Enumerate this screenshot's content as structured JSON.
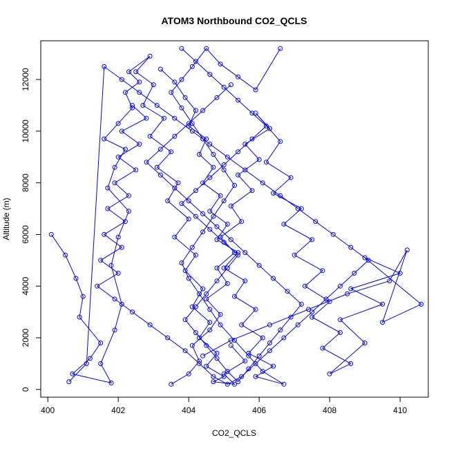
{
  "chart_data": {
    "type": "line",
    "title": "ATOM3 Northbound CO2_QCLS",
    "xlabel": "CO2_QCLS",
    "ylabel": "Altitude (m)",
    "xlim": [
      399.8,
      410.8
    ],
    "ylim": [
      -300,
      13500
    ],
    "x_ticks": [
      400,
      402,
      404,
      406,
      408,
      410
    ],
    "y_ticks": [
      0,
      2000,
      4000,
      6000,
      8000,
      10000,
      12000
    ],
    "marker": "open-circle",
    "grid": false,
    "series_color": "#0000ff",
    "series": [
      {
        "x": [
          400.1,
          400.5,
          400.8,
          401.0,
          400.9,
          401.5,
          401.2,
          400.7,
          401.8,
          401.5,
          401.9,
          402.1,
          401.8,
          402.0,
          402.3,
          401.7,
          401.9,
          402.2,
          401.6,
          402.0,
          402.4,
          402.2,
          402.6,
          402.3,
          402.9,
          402.5,
          403.0,
          402.7,
          403.3,
          402.9,
          403.5,
          403.1,
          403.7,
          403.4,
          404.0,
          403.6,
          404.2,
          403.9,
          404.4,
          404.1,
          404.6,
          404.3,
          404.8,
          404.5,
          405.0,
          404.7,
          405.3,
          405.0,
          405.6,
          405.2
        ],
        "y": [
          6000,
          5200,
          4300,
          3600,
          2800,
          1800,
          1200,
          600,
          250,
          1000,
          2300,
          3300,
          4800,
          5900,
          6900,
          7800,
          8600,
          9300,
          9700,
          10300,
          10900,
          11500,
          11900,
          12300,
          12900,
          12300,
          11800,
          11000,
          10500,
          9800,
          9200,
          8600,
          8000,
          7300,
          6600,
          5900,
          5200,
          4600,
          3900,
          3200,
          2600,
          2000,
          1400,
          900,
          500,
          300,
          200,
          600,
          1100,
          1700
        ]
      },
      {
        "x": [
          403.5,
          404.0,
          404.3,
          404.1,
          404.6,
          404.9,
          404.5,
          405.1,
          404.8,
          405.3,
          404.9,
          405.5,
          405.2,
          405.8,
          405.4,
          406.0,
          405.6,
          406.3,
          405.9,
          406.6,
          406.2,
          406.9,
          406.4,
          407.2,
          406.7,
          407.5,
          407.0,
          407.8,
          407.3,
          408.0,
          407.5,
          408.3,
          407.8,
          408.6,
          408.0,
          409.0,
          408.3,
          409.5,
          408.6,
          410.0,
          409.0,
          410.6,
          409.5,
          410.2,
          409.7,
          408.5,
          407.4,
          406.3,
          405.2,
          404.4
        ],
        "y": [
          200,
          600,
          1100,
          1700,
          2300,
          2900,
          3500,
          4100,
          4700,
          5300,
          5900,
          6500,
          7100,
          7700,
          8300,
          8900,
          9500,
          10100,
          10700,
          9600,
          8800,
          8200,
          7600,
          7000,
          6400,
          5800,
          5200,
          4600,
          4000,
          3400,
          2800,
          2200,
          1600,
          1000,
          600,
          1800,
          2700,
          3300,
          3900,
          4500,
          5100,
          3300,
          2600,
          5400,
          4200,
          3700,
          3100,
          2500,
          1900,
          1300
        ]
      },
      {
        "x": [
          403.2,
          403.6,
          403.9,
          404.2,
          404.0,
          404.5,
          404.3,
          404.7,
          404.4,
          404.9,
          404.6,
          405.1,
          404.8,
          405.4,
          405.0,
          405.6,
          405.3,
          405.9,
          405.5,
          406.1,
          405.7,
          406.4,
          405.9,
          406.7,
          406.1,
          405.7,
          405.3,
          404.9,
          404.6,
          404.3,
          404.0,
          403.8,
          404.1,
          404.4,
          404.7,
          405.0,
          405.3,
          405.0,
          404.7,
          404.4,
          404.1,
          403.8,
          403.5,
          403.8,
          404.1,
          404.5,
          404.9,
          405.4,
          405.9,
          406.6
        ],
        "y": [
          12400,
          11900,
          11300,
          10800,
          10200,
          9700,
          9100,
          8600,
          8000,
          7500,
          6900,
          6400,
          5800,
          5300,
          4700,
          4200,
          3600,
          3100,
          2500,
          2000,
          1400,
          900,
          500,
          200,
          700,
          1300,
          1900,
          2500,
          3100,
          3700,
          4300,
          4900,
          5500,
          6100,
          6700,
          7300,
          7900,
          8500,
          9100,
          9700,
          10300,
          10900,
          11500,
          12000,
          12500,
          13200,
          12600,
          12100,
          11600,
          13200
        ]
      },
      {
        "x": [
          402.4,
          402.8,
          402.1,
          402.6,
          402.0,
          402.5,
          401.9,
          402.3,
          401.7,
          402.2,
          401.6,
          402.1,
          401.5,
          402.0,
          401.4,
          401.9,
          402.4,
          402.9,
          403.4,
          403.9,
          404.3,
          404.7,
          405.1,
          405.5,
          405.9,
          406.3,
          406.7,
          407.1,
          407.5,
          407.9,
          408.3,
          408.7,
          409.1,
          408.6,
          408.1,
          407.6,
          407.1,
          406.6,
          406.1,
          405.6,
          405.1,
          404.6,
          404.1,
          403.6,
          403.1,
          402.6,
          402.1,
          401.6,
          401.1,
          400.6
        ],
        "y": [
          11000,
          10500,
          10000,
          9500,
          9000,
          8500,
          8000,
          7500,
          7000,
          6500,
          6000,
          5500,
          5000,
          4500,
          4000,
          3500,
          3000,
          2500,
          2000,
          1500,
          1000,
          500,
          200,
          500,
          1000,
          1500,
          2000,
          2500,
          3000,
          3500,
          4000,
          4500,
          5000,
          5500,
          6000,
          6500,
          7000,
          7500,
          8000,
          8500,
          9000,
          9500,
          10000,
          10500,
          11000,
          11500,
          12000,
          12500,
          1000,
          300
        ]
      },
      {
        "x": [
          403.8,
          404.2,
          404.6,
          405.0,
          405.4,
          405.8,
          406.2,
          405.8,
          405.4,
          405.0,
          404.6,
          404.2,
          403.8,
          404.2,
          404.6,
          405.0,
          405.4,
          405.1,
          404.8,
          404.5,
          404.2,
          403.9,
          404.2,
          404.5,
          404.8,
          405.1,
          405.4,
          405.7,
          406.0,
          406.3,
          406.6,
          406.9,
          407.2,
          406.8,
          406.4,
          406.0,
          405.6,
          405.2,
          404.8,
          404.4,
          404.0,
          403.6,
          403.2,
          402.8,
          403.2,
          403.6,
          404.0,
          404.4,
          404.8,
          405.2
        ],
        "y": [
          13200,
          12700,
          12200,
          11700,
          11200,
          10700,
          10200,
          9700,
          9200,
          8700,
          8200,
          7700,
          7200,
          6700,
          6200,
          5700,
          5200,
          4700,
          4200,
          3700,
          3200,
          2700,
          2200,
          1700,
          1200,
          700,
          300,
          800,
          1300,
          1800,
          2300,
          2800,
          3300,
          3800,
          4300,
          4800,
          5300,
          5800,
          6300,
          6800,
          7300,
          7800,
          8300,
          8800,
          9300,
          9800,
          10300,
          10800,
          11300,
          11800
        ]
      }
    ]
  }
}
